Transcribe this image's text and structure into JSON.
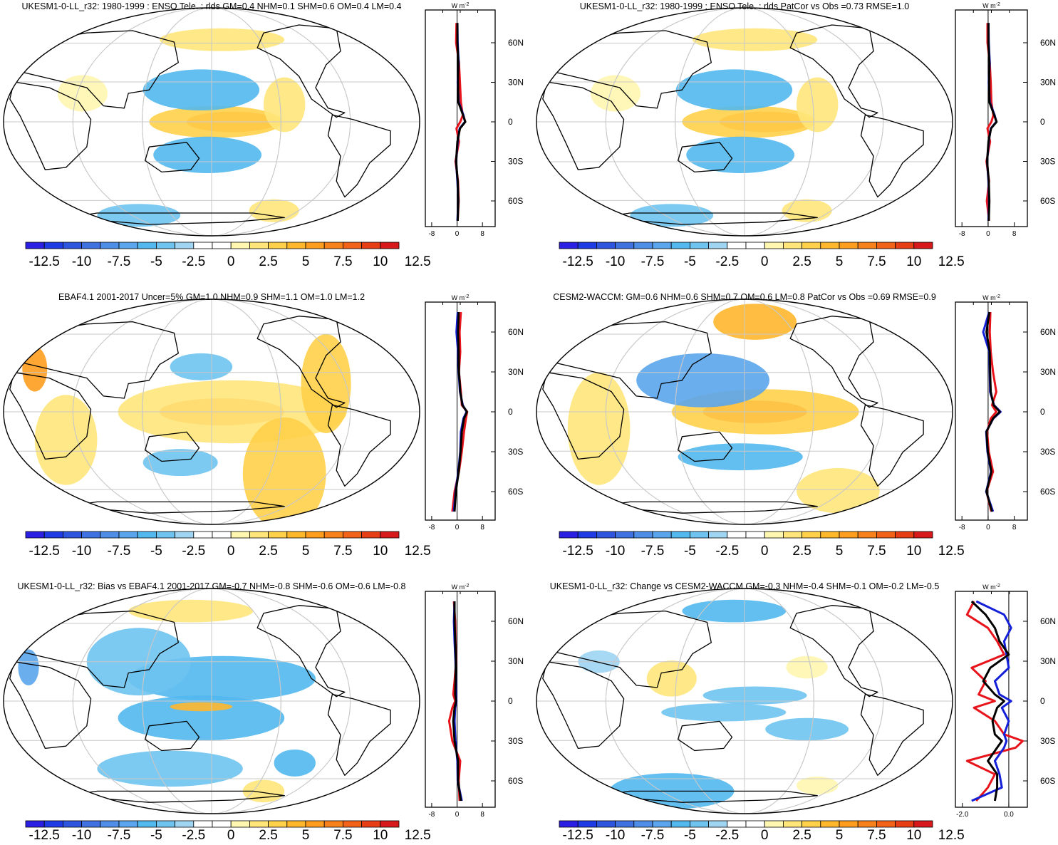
{
  "figure": {
    "units_label": "W m-2",
    "units_main": "W m",
    "units_sup": "-2",
    "lat_labels": [
      "60N",
      "30N",
      "0",
      "30S",
      "60S"
    ],
    "colorbar": {
      "labels": [
        "-12.5",
        "-10",
        "-7.5",
        "-5",
        "-2.5",
        "0",
        "2.5",
        "5",
        "7.5",
        "10",
        "12.5"
      ],
      "colors": [
        "#2a1fe3",
        "#1f3be6",
        "#2e55de",
        "#3f72e0",
        "#4f8ee6",
        "#5aa5ec",
        "#52b8ee",
        "#6ec3ef",
        "#9fd5f3",
        "#ffffff",
        "#ffffff",
        "#fff6b0",
        "#ffe57a",
        "#ffd04a",
        "#ffb72c",
        "#ff9d1e",
        "#f7811a",
        "#f26218",
        "#e83e16",
        "#d7191c"
      ]
    }
  },
  "chart_data": [
    {
      "type": "map",
      "title": "UKESM1-0-LL_r32: 1980-1999 : ENSO Tele. : rlds GM=0.4 NHM=0.1 SHM=0.6 OM=0.4 LM=0.4",
      "zonal_profile": {
        "type": "line",
        "xticks": [
          "-8",
          "0",
          "8"
        ],
        "xlim": [
          -10,
          12
        ],
        "lat": [
          -75,
          -60,
          -45,
          -30,
          -15,
          -5,
          0,
          5,
          15,
          30,
          45,
          60,
          75
        ],
        "series": [
          {
            "name": "red",
            "color": "#e8141b",
            "values": [
              0.2,
              0.5,
              0.3,
              -0.5,
              0.6,
              -0.2,
              1.0,
              1.8,
              1.2,
              0.9,
              0.6,
              -0.3,
              -0.2
            ]
          },
          {
            "name": "blue",
            "color": "#1420d8",
            "values": [
              0.1,
              0.4,
              0.1,
              -0.3,
              0.2,
              0.8,
              2.5,
              2.0,
              0.5,
              0.2,
              0.5,
              0.2,
              0.1
            ]
          },
          {
            "name": "black",
            "color": "#000000",
            "values": [
              0.2,
              0.4,
              0.2,
              -0.3,
              0.1,
              0.9,
              2.6,
              1.9,
              0.4,
              0.3,
              0.4,
              0.1,
              0.1
            ]
          }
        ]
      }
    },
    {
      "type": "map",
      "title": "UKESM1-0-LL_r32: 1980-1999 : ENSO Tele. : rlds PatCor vs Obs =0.73 RMSE=1.0",
      "zonal_profile": {
        "type": "line",
        "xticks": [
          "-8",
          "0",
          "8"
        ],
        "xlim": [
          -10,
          12
        ],
        "lat": [
          -75,
          -60,
          -45,
          -30,
          -15,
          -5,
          0,
          5,
          15,
          30,
          45,
          60,
          75
        ],
        "series": [
          {
            "name": "red",
            "color": "#e8141b",
            "values": [
              0.3,
              -0.4,
              0.3,
              -0.5,
              0.6,
              -0.2,
              1.0,
              1.6,
              1.0,
              0.8,
              0.5,
              -0.2,
              -0.2
            ]
          },
          {
            "name": "blue",
            "color": "#1420d8",
            "values": [
              0.1,
              0.3,
              0.1,
              -0.3,
              0.2,
              0.8,
              2.5,
              2.0,
              0.5,
              0.2,
              0.5,
              0.2,
              0.1
            ]
          },
          {
            "name": "black",
            "color": "#000000",
            "values": [
              0.2,
              0.4,
              0.2,
              -0.3,
              0.1,
              0.9,
              2.6,
              1.9,
              0.4,
              0.3,
              0.4,
              0.1,
              0.1
            ]
          }
        ]
      }
    },
    {
      "type": "map",
      "title": "EBAF4.1 2001-2017 Uncer=5% GM=1.0 NHM=0.9 SHM=1.1 OM=1.0 LM=1.2",
      "zonal_profile": {
        "type": "line",
        "xticks": [
          "-8",
          "0",
          "8"
        ],
        "xlim": [
          -10,
          12
        ],
        "lat": [
          -75,
          -60,
          -45,
          -30,
          -15,
          -5,
          0,
          5,
          15,
          30,
          45,
          60,
          75
        ],
        "series": [
          {
            "name": "red",
            "color": "#e8141b",
            "values": [
              -1.5,
              -0.8,
              0.6,
              1.5,
              2.2,
              2.8,
              3.2,
              1.5,
              1.2,
              0.6,
              1.0,
              0.8,
              1.2
            ]
          },
          {
            "name": "blue",
            "color": "#1420d8",
            "values": [
              -1.0,
              -0.5,
              0.4,
              1.0,
              1.2,
              2.0,
              3.0,
              1.8,
              0.9,
              0.5,
              0.3,
              -0.2,
              0.2
            ]
          },
          {
            "name": "black",
            "color": "#000000",
            "values": [
              -0.8,
              -0.4,
              0.5,
              1.1,
              1.5,
              2.2,
              3.1,
              1.7,
              1.0,
              0.6,
              0.5,
              0.3,
              0.5
            ]
          }
        ]
      }
    },
    {
      "type": "map",
      "title": "CESM2-WACCM: GM=0.6 NHM=0.6 SHM=0.7 OM=0.6 LM=0.8 PatCor vs Obs =0.69 RMSE=0.9",
      "zonal_profile": {
        "type": "line",
        "xticks": [
          "-8",
          "0",
          "8"
        ],
        "xlim": [
          -10,
          12
        ],
        "lat": [
          -75,
          -60,
          -45,
          -30,
          -15,
          -5,
          0,
          5,
          15,
          30,
          45,
          60,
          75
        ],
        "series": [
          {
            "name": "red",
            "color": "#e8141b",
            "values": [
              1.0,
              -0.5,
              1.5,
              0.2,
              -0.3,
              0.8,
              2.5,
              1.2,
              2.5,
              1.5,
              0.8,
              0.5,
              0.7
            ]
          },
          {
            "name": "blue",
            "color": "#1420d8",
            "values": [
              1.5,
              -0.6,
              0.9,
              -0.2,
              -0.6,
              1.6,
              3.8,
              1.8,
              0.6,
              0.5,
              0.4,
              -1.5,
              0.3
            ]
          },
          {
            "name": "black",
            "color": "#000000",
            "values": [
              1.2,
              -0.5,
              1.0,
              -0.1,
              -0.5,
              1.5,
              3.6,
              1.7,
              0.8,
              0.6,
              0.5,
              -0.5,
              0.4
            ]
          }
        ]
      }
    },
    {
      "type": "map",
      "title": "UKESM1-0-LL_r32: Bias vs EBAF4.1 2001-2017 GM=-0.7 NHM=-0.8 SHM=-0.6 OM=-0.6 LM=-0.8",
      "zonal_profile": {
        "type": "line",
        "xticks": [
          "-8",
          "0",
          "8"
        ],
        "xlim": [
          -10,
          12
        ],
        "lat": [
          -75,
          -60,
          -45,
          -30,
          -15,
          -5,
          0,
          5,
          15,
          30,
          45,
          60,
          75
        ],
        "series": [
          {
            "name": "red",
            "color": "#e8141b",
            "values": [
              0.8,
              0.5,
              1.0,
              -1.5,
              -2.5,
              -1.5,
              -0.6,
              -1.2,
              -0.8,
              -0.3,
              -0.5,
              -0.6,
              -1.0
            ]
          },
          {
            "name": "blue",
            "color": "#1420d8",
            "values": [
              1.5,
              0.2,
              0.1,
              -0.5,
              -0.8,
              -0.6,
              -0.2,
              -0.4,
              -0.4,
              -0.5,
              -0.8,
              -1.0,
              -0.8
            ]
          },
          {
            "name": "black",
            "color": "#000000",
            "values": [
              1.2,
              0.3,
              0.3,
              -0.8,
              -1.2,
              -0.8,
              -0.3,
              -0.6,
              -0.5,
              -0.4,
              -0.6,
              -0.8,
              -0.8
            ]
          }
        ]
      }
    },
    {
      "type": "map",
      "title": "UKESM1-0-LL_r32: Change vs CESM2-WACCM GM=-0.3 NHM=-0.4 SHM=-0.1 OM=-0.2 LM=-0.5",
      "zonal_profile": {
        "type": "line",
        "xticks": [
          "-2.0",
          "0.0"
        ],
        "xlim": [
          -2.3,
          0.8
        ],
        "lat": [
          -75,
          -65,
          -55,
          -45,
          -35,
          -30,
          -25,
          -15,
          -5,
          0,
          5,
          15,
          25,
          35,
          45,
          55,
          65,
          75
        ],
        "series": [
          {
            "name": "red",
            "color": "#e8141b",
            "values": [
              -1.4,
              -0.9,
              -0.6,
              -1.8,
              0.3,
              0.6,
              -0.2,
              -0.6,
              -1.5,
              -0.6,
              -1.3,
              -1.0,
              -1.6,
              -0.2,
              -0.5,
              -0.9,
              -1.8,
              -1.5
            ]
          },
          {
            "name": "blue",
            "color": "#1420d8",
            "values": [
              -1.6,
              -0.3,
              -0.4,
              -0.6,
              -0.2,
              -0.1,
              -0.2,
              0.0,
              -0.3,
              0.1,
              -0.4,
              -0.6,
              0.0,
              -0.1,
              -0.2,
              0.1,
              -0.2,
              -1.4
            ]
          },
          {
            "name": "black",
            "color": "#000000",
            "values": [
              -0.6,
              -0.5,
              -0.5,
              -0.9,
              -0.5,
              -0.3,
              -0.6,
              -0.7,
              -0.5,
              -0.2,
              -0.6,
              -1.1,
              -0.8,
              0.0,
              -0.4,
              -0.6,
              -1.0,
              -1.6
            ]
          }
        ]
      }
    }
  ]
}
